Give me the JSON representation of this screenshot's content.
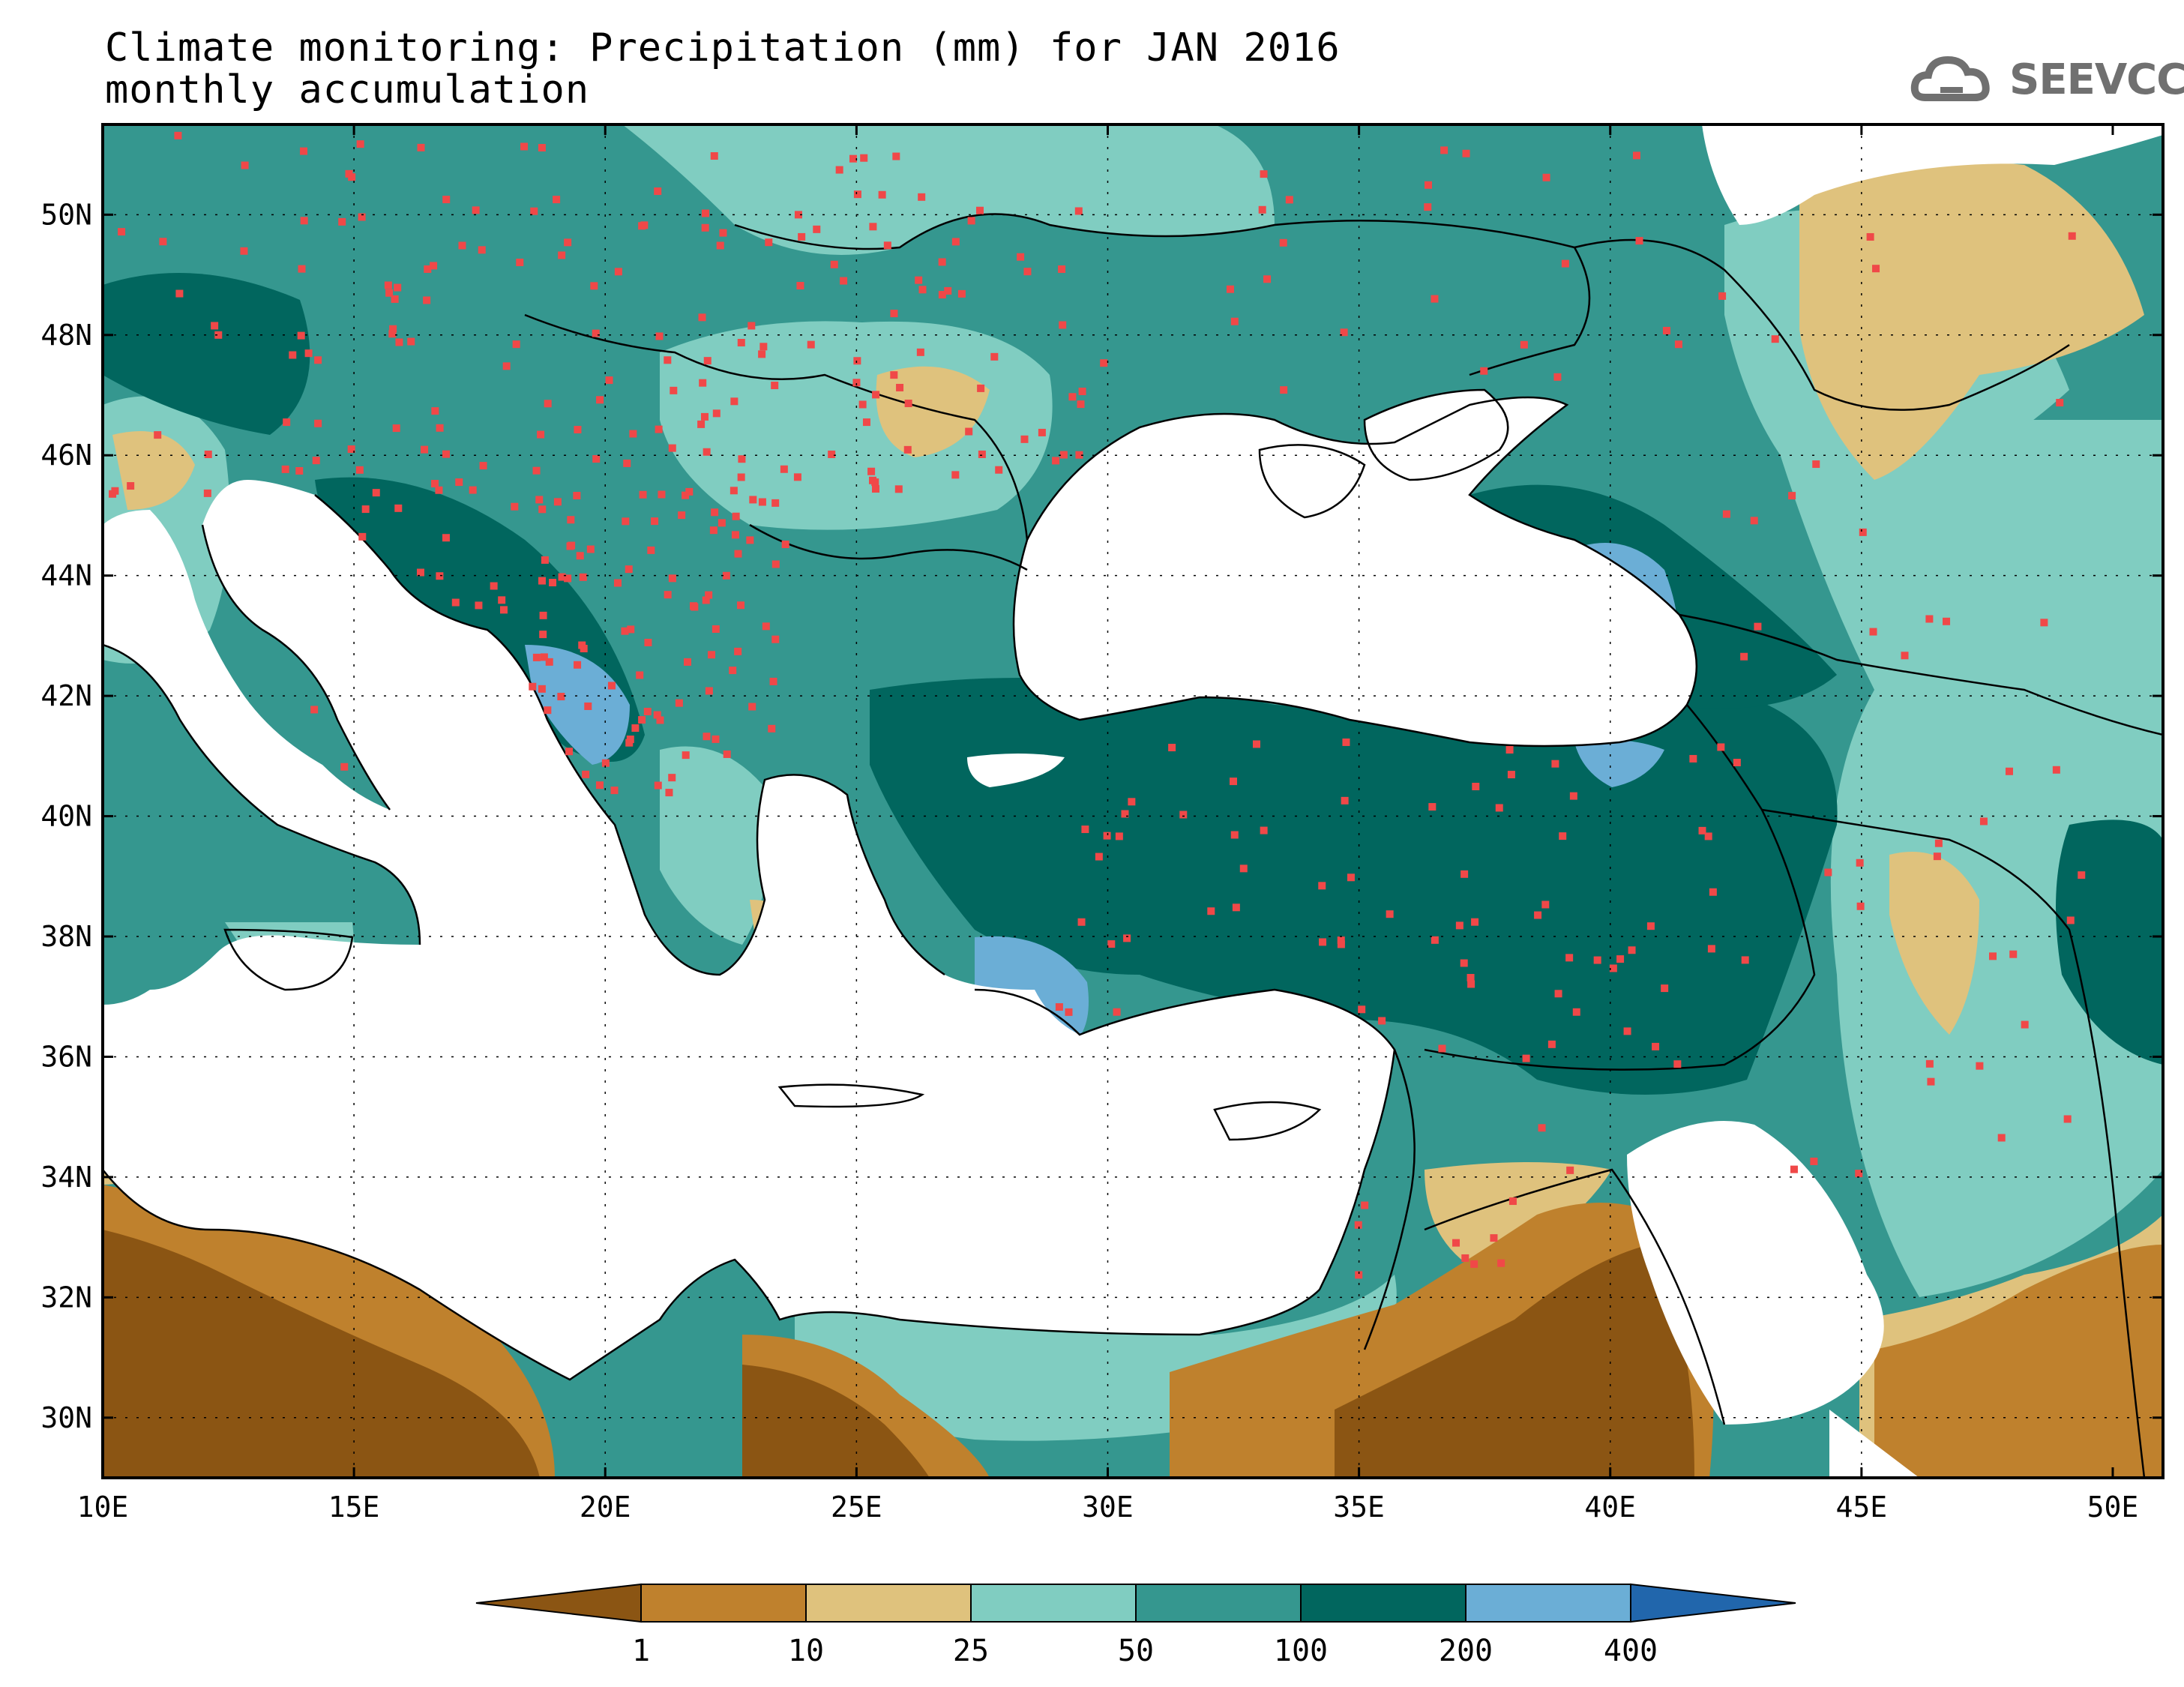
{
  "title": {
    "line1": "Climate monitoring: Precipitation (mm) for JAN 2016",
    "line2": "monthly accumulation"
  },
  "logo": {
    "text": "SEEVCCC",
    "icon": "cloud-icon"
  },
  "axes": {
    "x_ticks": [
      "10E",
      "15E",
      "20E",
      "25E",
      "30E",
      "35E",
      "40E",
      "45E",
      "50E"
    ],
    "y_ticks": [
      "50N",
      "48N",
      "46N",
      "44N",
      "42N",
      "40N",
      "38N",
      "36N",
      "34N",
      "32N",
      "30N"
    ]
  },
  "legend": {
    "levels": [
      "1",
      "10",
      "25",
      "50",
      "100",
      "200",
      "400"
    ],
    "colors": [
      "#8b5513",
      "#bf812d",
      "#dfc27d",
      "#80cdc1",
      "#35978f",
      "#01665e",
      "#6baed6",
      "#2166ac"
    ]
  },
  "colors": {
    "sea": "#ffffff",
    "station": "#f04848",
    "coast": "#000000"
  }
}
